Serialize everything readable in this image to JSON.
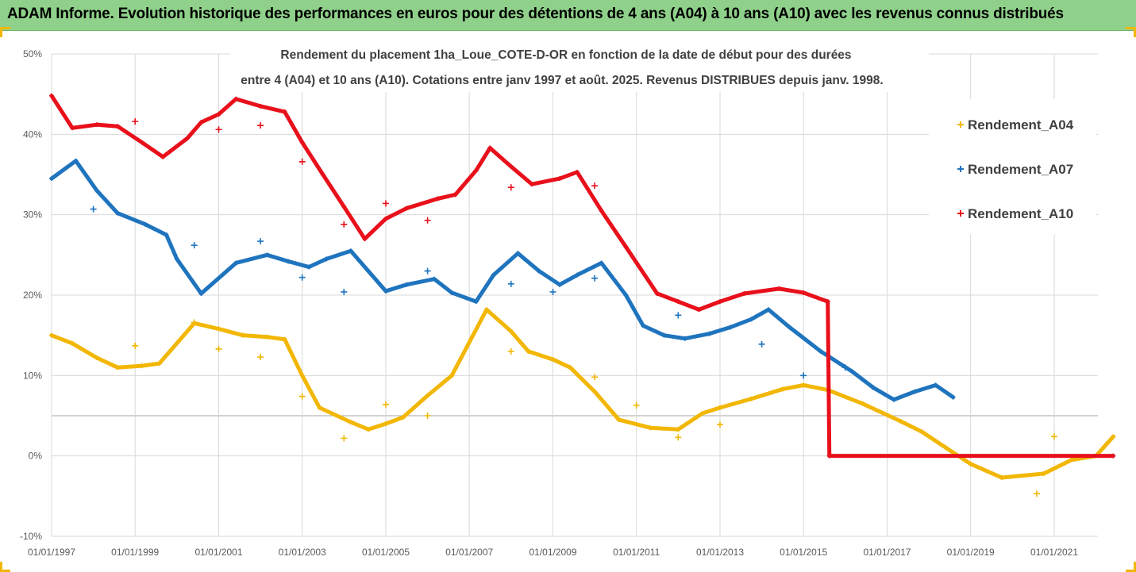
{
  "header": {
    "title": "ADAM Informe. Evolution historique des performances en euros pour des détentions de 4 ans (A04) à 10 ans (A10) avec les revenus connus distribués"
  },
  "chart_data": {
    "type": "scatter",
    "title_line1": "Rendement du placement 1ha_Loue_COTE-D-OR en fonction de la date de début pour des durées",
    "title_line2": "entre 4 (A04) et 10 ans (A10). Cotations entre janv 1997 et août. 2025. Revenus DISTRIBUES depuis janv. 1998.",
    "x_range": [
      "1997-01-01",
      "2022-06-01"
    ],
    "x_tick_labels": [
      "01/01/1997",
      "01/01/1999",
      "01/01/2001",
      "01/01/2003",
      "01/01/2005",
      "01/01/2007",
      "01/01/2009",
      "01/01/2011",
      "01/01/2013",
      "01/01/2015",
      "01/01/2017",
      "01/01/2019",
      "01/01/2021"
    ],
    "y_range": [
      -10,
      50
    ],
    "y_tick_labels": [
      "50%",
      "40%",
      "30%",
      "20%",
      "10%",
      "0%",
      "-10%"
    ],
    "grid": "horizontal",
    "legend_position": "right",
    "series": [
      {
        "name": "Rendement_A04",
        "color": "#f2b705",
        "x": [
          "1997-01-01",
          "1997-07-01",
          "1998-02-01",
          "1998-08-01",
          "1999-03-01",
          "1999-08-01",
          "2000-06-01",
          "2001-01-01",
          "2001-08-01",
          "2002-03-01",
          "2002-08-01",
          "2003-01-01",
          "2003-06-01",
          "2004-03-01",
          "2004-08-01",
          "2005-01-01",
          "2005-06-01",
          "2006-01-01",
          "2006-08-01",
          "2007-06-01",
          "2008-01-01",
          "2008-06-01",
          "2009-01-01",
          "2009-06-01",
          "2010-01-01",
          "2010-08-01",
          "2011-05-01",
          "2012-01-01",
          "2012-08-01",
          "2013-01-01",
          "2013-10-01",
          "2014-07-01",
          "2015-01-01",
          "2015-08-01",
          "2016-06-01",
          "2017-05-01",
          "2017-11-01",
          "2018-06-01",
          "2019-01-01",
          "2019-10-01",
          "2020-10-01",
          "2021-06-01",
          "2022-01-01",
          "2022-06-01"
        ],
        "values": [
          15,
          14,
          12.2,
          11,
          11.2,
          11.5,
          16.5,
          15.8,
          15,
          14.8,
          14.5,
          10,
          6,
          4.2,
          3.3,
          4,
          4.8,
          7.5,
          10,
          18.2,
          15.5,
          13,
          12,
          11,
          8,
          4.5,
          3.5,
          3.3,
          5.3,
          6,
          7.1,
          8.3,
          8.8,
          8.2,
          6.5,
          4.3,
          3,
          1,
          -1,
          -2.7,
          -2.2,
          -0.5,
          0,
          2.4
        ]
      },
      {
        "name": "Rendement_A07",
        "color": "#1f74be",
        "x": [
          "1997-01-01",
          "1997-08-01",
          "1998-02-01",
          "1998-08-01",
          "1999-04-01",
          "1999-10-01",
          "2000-01-01",
          "2000-08-01",
          "2001-06-01",
          "2002-03-01",
          "2002-09-01",
          "2003-03-01",
          "2003-08-01",
          "2004-03-01",
          "2004-08-01",
          "2005-01-01",
          "2005-07-01",
          "2006-03-01",
          "2006-08-01",
          "2007-03-01",
          "2007-08-01",
          "2008-03-01",
          "2008-09-01",
          "2009-03-01",
          "2009-08-01",
          "2010-03-01",
          "2010-10-01",
          "2011-03-01",
          "2011-09-01",
          "2012-03-01",
          "2012-10-01",
          "2013-04-01",
          "2013-10-01",
          "2014-03-01",
          "2014-09-01",
          "2015-06-01",
          "2016-03-01",
          "2016-09-01",
          "2017-03-01",
          "2017-09-01",
          "2018-03-01",
          "2018-08-01"
        ],
        "values": [
          34.5,
          36.7,
          33,
          30.2,
          28.8,
          27.5,
          24.5,
          20.2,
          24,
          25,
          24.2,
          23.5,
          24.5,
          25.5,
          23,
          20.5,
          21.3,
          22,
          20.3,
          19.2,
          22.5,
          25.2,
          23,
          21.3,
          22.5,
          24,
          20,
          16.2,
          15,
          14.6,
          15.2,
          16,
          17,
          18.2,
          16,
          13,
          10.5,
          8.5,
          7,
          8,
          8.8,
          7.3
        ]
      },
      {
        "name": "Rendement_A10",
        "color": "#e8101b",
        "x": [
          "1997-01-01",
          "1997-07-01",
          "1998-02-01",
          "1998-08-01",
          "1999-03-01",
          "1999-09-01",
          "2000-04-01",
          "2000-08-01",
          "2001-01-01",
          "2001-06-01",
          "2002-01-01",
          "2002-08-01",
          "2003-01-01",
          "2003-07-01",
          "2004-01-01",
          "2004-07-01",
          "2005-01-01",
          "2005-07-01",
          "2006-04-01",
          "2006-09-01",
          "2007-03-01",
          "2007-07-01",
          "2008-01-01",
          "2008-07-01",
          "2009-03-01",
          "2009-08-01",
          "2010-03-01",
          "2010-10-01",
          "2011-07-01",
          "2012-01-01",
          "2012-07-01",
          "2013-01-01",
          "2013-08-01",
          "2014-06-01",
          "2015-01-01",
          "2015-08-01",
          "2015-08-15",
          "2022-06-01"
        ],
        "values": [
          44.8,
          40.8,
          41.2,
          41,
          39,
          37.2,
          39.5,
          41.5,
          42.5,
          44.4,
          43.5,
          42.8,
          39,
          35,
          31,
          27,
          29.5,
          30.8,
          32,
          32.5,
          35.5,
          38.3,
          36,
          33.8,
          34.5,
          35.3,
          30.5,
          26,
          20.2,
          19.2,
          18.2,
          19.2,
          20.2,
          20.8,
          20.3,
          19.2,
          0,
          0
        ]
      }
    ],
    "scatter_points": {
      "Rendement_A04": [
        [
          "1999-01-01",
          13.7
        ],
        [
          "2000-06-01",
          16.6
        ],
        [
          "2001-01-01",
          13.3
        ],
        [
          "2002-01-01",
          12.3
        ],
        [
          "2003-01-01",
          7.4
        ],
        [
          "2004-01-01",
          2.2
        ],
        [
          "2005-01-01",
          6.4
        ],
        [
          "2006-01-01",
          5
        ],
        [
          "2008-01-01",
          13
        ],
        [
          "2010-01-01",
          9.8
        ],
        [
          "2011-01-01",
          6.3
        ],
        [
          "2012-01-01",
          2.3
        ],
        [
          "2013-01-01",
          3.9
        ],
        [
          "2021-01-01",
          2.4
        ],
        [
          "2020-08-01",
          -4.7
        ]
      ],
      "Rendement_A07": [
        [
          "1998-01-01",
          30.7
        ],
        [
          "2000-06-01",
          26.2
        ],
        [
          "2002-01-01",
          26.7
        ],
        [
          "2003-01-01",
          22.2
        ],
        [
          "2004-01-01",
          20.4
        ],
        [
          "2006-01-01",
          23
        ],
        [
          "2008-01-01",
          21.4
        ],
        [
          "2009-01-01",
          20.4
        ],
        [
          "2010-01-01",
          22.1
        ],
        [
          "2012-01-01",
          17.5
        ],
        [
          "2014-01-01",
          13.9
        ],
        [
          "2015-01-01",
          10
        ],
        [
          "2016-01-01",
          11
        ]
      ],
      "Rendement_A10": [
        [
          "1999-01-01",
          41.6
        ],
        [
          "2001-01-01",
          40.6
        ],
        [
          "2002-01-01",
          41.1
        ],
        [
          "2003-01-01",
          36.6
        ],
        [
          "2004-01-01",
          28.8
        ],
        [
          "2005-01-01",
          31.4
        ],
        [
          "2006-01-01",
          29.3
        ],
        [
          "2008-01-01",
          33.4
        ],
        [
          "2010-01-01",
          33.6
        ]
      ]
    }
  }
}
